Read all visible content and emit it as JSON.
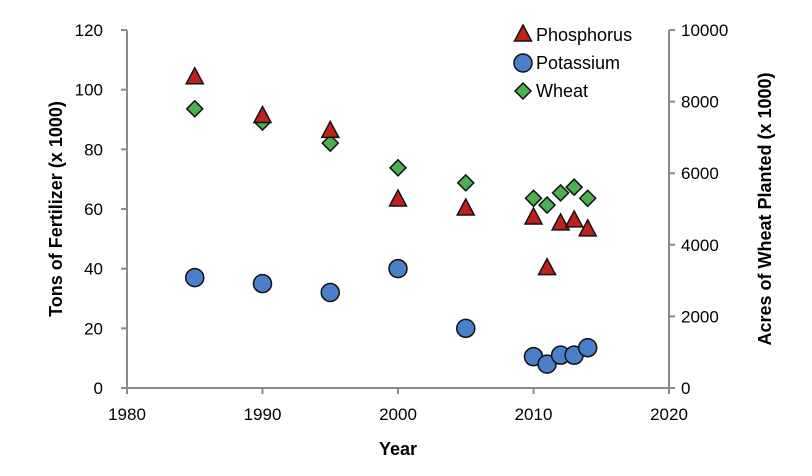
{
  "chart_data": {
    "type": "scatter",
    "xlabel": "Year",
    "ylabel": "Tons of Fertilizer (x 1000)",
    "y2label": "Acres of Wheat Planted (x 1000)",
    "xlim": [
      1980,
      2020
    ],
    "ylim": [
      0,
      120
    ],
    "y2lim": [
      0,
      10000
    ],
    "xticks": [
      1980,
      1990,
      2000,
      2010,
      2020
    ],
    "yticks": [
      0,
      20,
      40,
      60,
      80,
      100,
      120
    ],
    "y2ticks": [
      0,
      2000,
      4000,
      6000,
      8000,
      10000
    ],
    "grid": false,
    "legend": "top-right",
    "series": [
      {
        "name": "Phosphorus",
        "marker": "triangle",
        "color": "#C0201A",
        "axis": "left",
        "x": [
          1985,
          1990,
          1995,
          2000,
          2005,
          2010,
          2011,
          2012,
          2013,
          2014
        ],
        "y": [
          104,
          91,
          86,
          63,
          60,
          57,
          40,
          55,
          56,
          53
        ]
      },
      {
        "name": "Potassium",
        "marker": "circle",
        "color": "#4A7FC9",
        "axis": "left",
        "x": [
          1985,
          1990,
          1995,
          2000,
          2005,
          2010,
          2011,
          2012,
          2013,
          2014
        ],
        "y": [
          37,
          35,
          32,
          40,
          20,
          10.5,
          8,
          11,
          11,
          13.5
        ]
      },
      {
        "name": "Wheat",
        "marker": "diamond",
        "color": "#4CAF50",
        "axis": "right",
        "x": [
          1985,
          1990,
          1995,
          2000,
          2005,
          2010,
          2011,
          2012,
          2013,
          2014
        ],
        "y": [
          7800,
          7430,
          6840,
          6150,
          5730,
          5300,
          5110,
          5450,
          5610,
          5300
        ]
      }
    ]
  }
}
